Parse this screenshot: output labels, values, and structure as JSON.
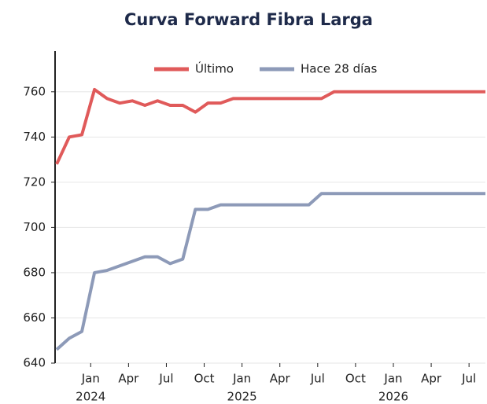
{
  "chart_data": {
    "type": "line",
    "title": "Curva Forward Fibra Larga",
    "x": [
      0,
      1,
      2,
      3,
      4,
      5,
      6,
      7,
      8,
      9,
      10,
      11,
      12,
      13,
      14,
      15,
      16,
      17,
      18,
      19,
      20,
      21,
      22,
      23,
      24,
      25,
      26,
      27,
      28,
      29,
      30,
      31,
      32,
      33,
      34
    ],
    "series": [
      {
        "name": "Último",
        "color": "#e05a5a",
        "values": [
          728,
          740,
          741,
          761,
          757,
          755,
          756,
          754,
          756,
          754,
          754,
          751,
          755,
          755,
          757,
          757,
          757,
          757,
          757,
          757,
          757,
          757,
          760,
          760,
          760,
          760,
          760,
          760,
          760,
          760,
          760,
          760,
          760,
          760,
          760
        ]
      },
      {
        "name": "Hace 28 días",
        "color": "#8d9ab8",
        "values": [
          646,
          651,
          654,
          680,
          681,
          683,
          685,
          687,
          687,
          684,
          686,
          708,
          708,
          710,
          710,
          710,
          710,
          710,
          710,
          710,
          710,
          715,
          715,
          715,
          715,
          715,
          715,
          715,
          715,
          715,
          715,
          715,
          715,
          715,
          715
        ]
      }
    ],
    "xlim": [
      0,
      34
    ],
    "xticks": [
      {
        "value": 2.7,
        "label": "Jan"
      },
      {
        "value": 5.7,
        "label": "Apr"
      },
      {
        "value": 8.7,
        "label": "Jul"
      },
      {
        "value": 11.7,
        "label": "Oct"
      },
      {
        "value": 14.7,
        "label": "Jan"
      },
      {
        "value": 17.7,
        "label": "Apr"
      },
      {
        "value": 20.7,
        "label": "Jul"
      },
      {
        "value": 23.7,
        "label": "Oct"
      },
      {
        "value": 26.7,
        "label": "Jan"
      },
      {
        "value": 29.7,
        "label": "Apr"
      },
      {
        "value": 32.7,
        "label": "Jul"
      }
    ],
    "year_ticks": [
      {
        "value": 2.7,
        "label": "2024"
      },
      {
        "value": 14.7,
        "label": "2025"
      },
      {
        "value": 26.7,
        "label": "2026"
      }
    ],
    "ylim": [
      640,
      778
    ],
    "yticks": [
      640,
      660,
      680,
      700,
      720,
      740,
      760
    ],
    "grid": true,
    "legend": "top"
  }
}
